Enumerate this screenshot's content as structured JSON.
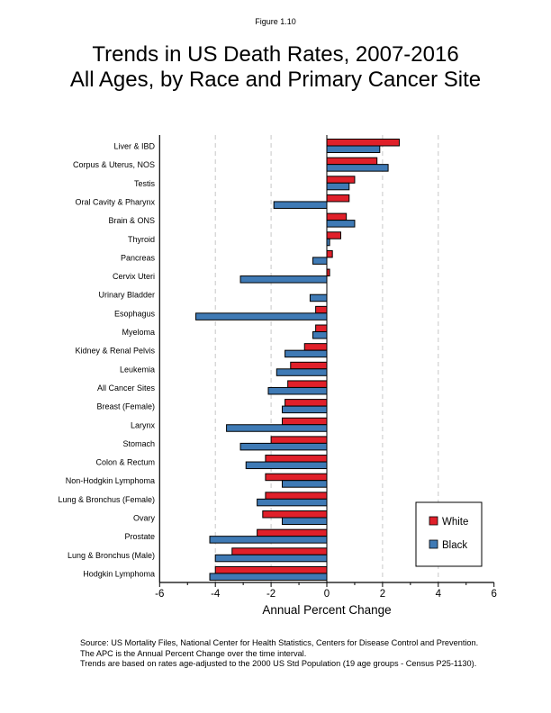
{
  "figure_label": "Figure 1.10",
  "title_lines": [
    "Trends in US Death Rates, 2007-2016",
    "All Ages, by Race and Primary Cancer Site"
  ],
  "source_lines": [
    "Source: US Mortality Files, National Center for Health Statistics, Centers for Disease Control and Prevention.",
    "The APC is the Annual Percent Change over the time interval.",
    "Trends are based on rates age-adjusted to the 2000 US Std Population (19 age groups - Census P25-1130)."
  ],
  "colors": {
    "white": "#e0202a",
    "black": "#3f7ab5",
    "grid": "#c8c8c8"
  },
  "chart_data": {
    "type": "bar",
    "orientation": "horizontal",
    "title": "Trends in US Death Rates, 2007-2016 All Ages, by Race and Primary Cancer Site",
    "xlabel": "Annual Percent Change",
    "ylabel": "",
    "xlim": [
      -6,
      6
    ],
    "xticks": [
      -6,
      -4,
      -2,
      0,
      2,
      4,
      6
    ],
    "xtick_labels": [
      "-6",
      "-4",
      "-2",
      "0",
      "2",
      "4",
      "6"
    ],
    "grid": "vertical dashed at -4, -2, 2, 4",
    "legend_position": "bottom-right",
    "categories": [
      "Liver & IBD",
      "Corpus & Uterus, NOS",
      "Testis",
      "Oral Cavity & Pharynx",
      "Brain & ONS",
      "Thyroid",
      "Pancreas",
      "Cervix Uteri",
      "Urinary Bladder",
      "Esophagus",
      "Myeloma",
      "Kidney & Renal Pelvis",
      "Leukemia",
      "All Cancer Sites",
      "Breast (Female)",
      "Larynx",
      "Stomach",
      "Colon & Rectum",
      "Non-Hodgkin Lymphoma",
      "Lung & Bronchus (Female)",
      "Ovary",
      "Prostate",
      "Lung & Bronchus (Male)",
      "Hodgkin Lymphoma"
    ],
    "series": [
      {
        "name": "White",
        "values": [
          2.6,
          1.8,
          1.0,
          0.8,
          0.7,
          0.5,
          0.2,
          0.1,
          0.0,
          -0.4,
          -0.4,
          -0.8,
          -1.3,
          -1.4,
          -1.5,
          -1.6,
          -2.0,
          -2.2,
          -2.2,
          -2.2,
          -2.3,
          -2.5,
          -3.4,
          -4.0
        ]
      },
      {
        "name": "Black",
        "values": [
          1.9,
          2.2,
          0.8,
          -1.9,
          1.0,
          0.1,
          -0.5,
          -3.1,
          -0.6,
          -4.7,
          -0.5,
          -1.5,
          -1.8,
          -2.1,
          -1.6,
          -3.6,
          -3.1,
          -2.9,
          -1.6,
          -2.5,
          -1.6,
          -4.2,
          -4.0,
          -4.2
        ]
      }
    ]
  }
}
